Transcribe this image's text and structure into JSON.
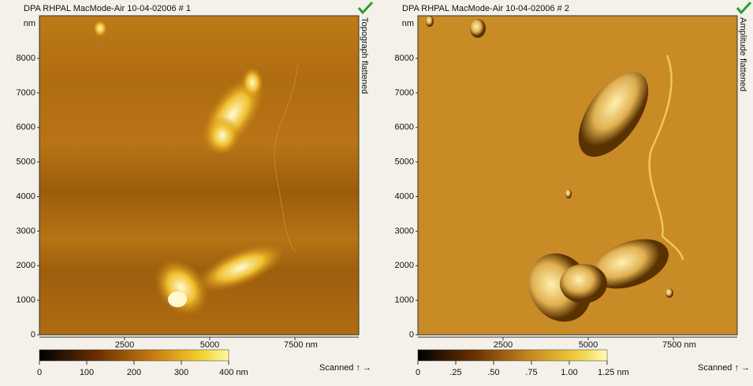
{
  "panels": [
    {
      "title": "DPA RHPAL MacMode-Air 10-04-02006 # 1",
      "side_label": "Topograph flattened",
      "y_labels": [
        "nm",
        "8000",
        "7000",
        "6000",
        "5000",
        "4000",
        "3000",
        "2000",
        "1000",
        "0"
      ],
      "x_labels": [
        "2500",
        "5000",
        "7500 nm"
      ],
      "colorbar_labels": [
        "0",
        "100",
        "200",
        "300",
        "400 nm"
      ],
      "scan_label": "Scanned ↑ →"
    },
    {
      "title": "DPA RHPAL MacMode-Air 10-04-02006 # 2",
      "side_label": "Amplitude flattened",
      "y_labels": [
        "nm",
        "8000",
        "7000",
        "6000",
        "5000",
        "4000",
        "3000",
        "2000",
        "1000",
        "0"
      ],
      "x_labels": [
        "2500",
        "5000",
        "7500 nm"
      ],
      "colorbar_labels": [
        "0",
        ".25",
        ".50",
        ".75",
        "1.00",
        "1.25 nm"
      ],
      "scan_label": "Scanned ↑ →"
    }
  ]
}
